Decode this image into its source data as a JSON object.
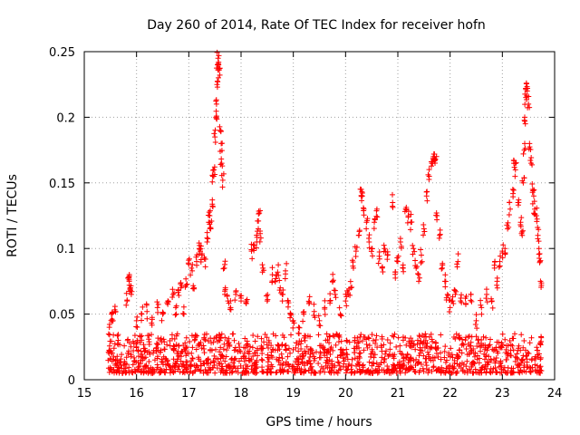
{
  "chart_data": {
    "type": "scatter",
    "title": "Day 260 of 2014, Rate Of TEC Index for receiver hofn",
    "xlabel": "GPS time / hours",
    "ylabel": "ROTI / TECUs",
    "xlim": [
      15,
      24
    ],
    "ylim": [
      0,
      0.25
    ],
    "xticks": [
      "15",
      "16",
      "17",
      "18",
      "19",
      "20",
      "21",
      "22",
      "23",
      "24"
    ],
    "yticks": [
      "0",
      "0.05",
      "0.1",
      "0.15",
      "0.2",
      "0.25"
    ],
    "grid": true,
    "marker": "+",
    "series": [
      {
        "name": "ROTI",
        "color": "#ff0000",
        "baseline": {
          "x_start": 15.45,
          "x_end": 23.75,
          "y_min": 0.005,
          "y_max": 0.035
        },
        "points": [
          {
            "x": 15.48,
            "y": 0.04
          },
          {
            "x": 15.52,
            "y": 0.05
          },
          {
            "x": 15.55,
            "y": 0.045
          },
          {
            "x": 15.6,
            "y": 0.052
          },
          {
            "x": 15.65,
            "y": 0.03
          },
          {
            "x": 15.85,
            "y": 0.078
          },
          {
            "x": 15.86,
            "y": 0.075
          },
          {
            "x": 15.88,
            "y": 0.07
          },
          {
            "x": 15.9,
            "y": 0.065
          },
          {
            "x": 15.82,
            "y": 0.06
          },
          {
            "x": 16.0,
            "y": 0.045
          },
          {
            "x": 16.1,
            "y": 0.05
          },
          {
            "x": 16.2,
            "y": 0.052
          },
          {
            "x": 16.3,
            "y": 0.046
          },
          {
            "x": 16.4,
            "y": 0.055
          },
          {
            "x": 16.5,
            "y": 0.05
          },
          {
            "x": 16.6,
            "y": 0.06
          },
          {
            "x": 16.7,
            "y": 0.065
          },
          {
            "x": 16.75,
            "y": 0.055
          },
          {
            "x": 16.8,
            "y": 0.068
          },
          {
            "x": 16.85,
            "y": 0.07
          },
          {
            "x": 16.9,
            "y": 0.05
          },
          {
            "x": 16.95,
            "y": 0.072
          },
          {
            "x": 17.0,
            "y": 0.088
          },
          {
            "x": 17.05,
            "y": 0.085
          },
          {
            "x": 17.1,
            "y": 0.07
          },
          {
            "x": 17.15,
            "y": 0.09
          },
          {
            "x": 17.2,
            "y": 0.1
          },
          {
            "x": 17.22,
            "y": 0.098
          },
          {
            "x": 17.25,
            "y": 0.095
          },
          {
            "x": 17.3,
            "y": 0.092
          },
          {
            "x": 17.35,
            "y": 0.108
          },
          {
            "x": 17.38,
            "y": 0.12
          },
          {
            "x": 17.4,
            "y": 0.125
          },
          {
            "x": 17.42,
            "y": 0.115
          },
          {
            "x": 17.45,
            "y": 0.137
          },
          {
            "x": 17.46,
            "y": 0.155
          },
          {
            "x": 17.48,
            "y": 0.16
          },
          {
            "x": 17.5,
            "y": 0.185
          },
          {
            "x": 17.52,
            "y": 0.2
          },
          {
            "x": 17.53,
            "y": 0.21
          },
          {
            "x": 17.54,
            "y": 0.225
          },
          {
            "x": 17.55,
            "y": 0.24
          },
          {
            "x": 17.56,
            "y": 0.245
          },
          {
            "x": 17.57,
            "y": 0.242
          },
          {
            "x": 17.58,
            "y": 0.236
          },
          {
            "x": 17.6,
            "y": 0.19
          },
          {
            "x": 17.62,
            "y": 0.18
          },
          {
            "x": 17.63,
            "y": 0.165
          },
          {
            "x": 17.65,
            "y": 0.152
          },
          {
            "x": 17.68,
            "y": 0.085
          },
          {
            "x": 17.7,
            "y": 0.07
          },
          {
            "x": 17.75,
            "y": 0.06
          },
          {
            "x": 17.8,
            "y": 0.055
          },
          {
            "x": 17.9,
            "y": 0.065
          },
          {
            "x": 18.0,
            "y": 0.06
          },
          {
            "x": 18.1,
            "y": 0.058
          },
          {
            "x": 18.2,
            "y": 0.098
          },
          {
            "x": 18.25,
            "y": 0.1
          },
          {
            "x": 18.3,
            "y": 0.105
          },
          {
            "x": 18.33,
            "y": 0.115
          },
          {
            "x": 18.35,
            "y": 0.127
          },
          {
            "x": 18.38,
            "y": 0.108
          },
          {
            "x": 18.42,
            "y": 0.085
          },
          {
            "x": 18.5,
            "y": 0.06
          },
          {
            "x": 18.6,
            "y": 0.08
          },
          {
            "x": 18.65,
            "y": 0.075
          },
          {
            "x": 18.7,
            "y": 0.082
          },
          {
            "x": 18.75,
            "y": 0.07
          },
          {
            "x": 18.8,
            "y": 0.065
          },
          {
            "x": 18.85,
            "y": 0.083
          },
          {
            "x": 18.9,
            "y": 0.06
          },
          {
            "x": 18.95,
            "y": 0.05
          },
          {
            "x": 19.0,
            "y": 0.045
          },
          {
            "x": 19.1,
            "y": 0.04
          },
          {
            "x": 19.2,
            "y": 0.05
          },
          {
            "x": 19.3,
            "y": 0.058
          },
          {
            "x": 19.4,
            "y": 0.052
          },
          {
            "x": 19.5,
            "y": 0.045
          },
          {
            "x": 19.6,
            "y": 0.055
          },
          {
            "x": 19.7,
            "y": 0.06
          },
          {
            "x": 19.75,
            "y": 0.075
          },
          {
            "x": 19.8,
            "y": 0.065
          },
          {
            "x": 19.9,
            "y": 0.05
          },
          {
            "x": 20.0,
            "y": 0.06
          },
          {
            "x": 20.05,
            "y": 0.065
          },
          {
            "x": 20.1,
            "y": 0.07
          },
          {
            "x": 20.15,
            "y": 0.085
          },
          {
            "x": 20.2,
            "y": 0.098
          },
          {
            "x": 20.25,
            "y": 0.11
          },
          {
            "x": 20.3,
            "y": 0.145
          },
          {
            "x": 20.32,
            "y": 0.14
          },
          {
            "x": 20.35,
            "y": 0.13
          },
          {
            "x": 20.4,
            "y": 0.12
          },
          {
            "x": 20.45,
            "y": 0.105
          },
          {
            "x": 20.5,
            "y": 0.1
          },
          {
            "x": 20.55,
            "y": 0.12
          },
          {
            "x": 20.6,
            "y": 0.13
          },
          {
            "x": 20.65,
            "y": 0.092
          },
          {
            "x": 20.7,
            "y": 0.085
          },
          {
            "x": 20.75,
            "y": 0.1
          },
          {
            "x": 20.8,
            "y": 0.095
          },
          {
            "x": 20.9,
            "y": 0.135
          },
          {
            "x": 20.95,
            "y": 0.082
          },
          {
            "x": 21.0,
            "y": 0.09
          },
          {
            "x": 21.05,
            "y": 0.105
          },
          {
            "x": 21.1,
            "y": 0.085
          },
          {
            "x": 21.15,
            "y": 0.13
          },
          {
            "x": 21.2,
            "y": 0.125
          },
          {
            "x": 21.25,
            "y": 0.12
          },
          {
            "x": 21.3,
            "y": 0.1
          },
          {
            "x": 21.35,
            "y": 0.085
          },
          {
            "x": 21.4,
            "y": 0.075
          },
          {
            "x": 21.45,
            "y": 0.095
          },
          {
            "x": 21.5,
            "y": 0.115
          },
          {
            "x": 21.55,
            "y": 0.14
          },
          {
            "x": 21.6,
            "y": 0.155
          },
          {
            "x": 21.65,
            "y": 0.165
          },
          {
            "x": 21.68,
            "y": 0.17
          },
          {
            "x": 21.7,
            "y": 0.172
          },
          {
            "x": 21.72,
            "y": 0.168
          },
          {
            "x": 21.75,
            "y": 0.125
          },
          {
            "x": 21.8,
            "y": 0.11
          },
          {
            "x": 21.85,
            "y": 0.085
          },
          {
            "x": 21.9,
            "y": 0.075
          },
          {
            "x": 21.95,
            "y": 0.065
          },
          {
            "x": 22.0,
            "y": 0.055
          },
          {
            "x": 22.05,
            "y": 0.06
          },
          {
            "x": 22.1,
            "y": 0.065
          },
          {
            "x": 22.15,
            "y": 0.09
          },
          {
            "x": 22.2,
            "y": 0.06
          },
          {
            "x": 22.3,
            "y": 0.058
          },
          {
            "x": 22.4,
            "y": 0.065
          },
          {
            "x": 22.5,
            "y": 0.045
          },
          {
            "x": 22.6,
            "y": 0.055
          },
          {
            "x": 22.7,
            "y": 0.065
          },
          {
            "x": 22.8,
            "y": 0.06
          },
          {
            "x": 22.85,
            "y": 0.085
          },
          {
            "x": 22.9,
            "y": 0.075
          },
          {
            "x": 22.95,
            "y": 0.09
          },
          {
            "x": 23.0,
            "y": 0.098
          },
          {
            "x": 23.05,
            "y": 0.1
          },
          {
            "x": 23.1,
            "y": 0.115
          },
          {
            "x": 23.15,
            "y": 0.13
          },
          {
            "x": 23.2,
            "y": 0.145
          },
          {
            "x": 23.22,
            "y": 0.165
          },
          {
            "x": 23.25,
            "y": 0.16
          },
          {
            "x": 23.3,
            "y": 0.135
          },
          {
            "x": 23.35,
            "y": 0.12
          },
          {
            "x": 23.38,
            "y": 0.11
          },
          {
            "x": 23.4,
            "y": 0.15
          },
          {
            "x": 23.42,
            "y": 0.175
          },
          {
            "x": 23.44,
            "y": 0.195
          },
          {
            "x": 23.45,
            "y": 0.215
          },
          {
            "x": 23.46,
            "y": 0.226
          },
          {
            "x": 23.48,
            "y": 0.222
          },
          {
            "x": 23.5,
            "y": 0.21
          },
          {
            "x": 23.52,
            "y": 0.18
          },
          {
            "x": 23.55,
            "y": 0.165
          },
          {
            "x": 23.58,
            "y": 0.145
          },
          {
            "x": 23.6,
            "y": 0.14
          },
          {
            "x": 23.62,
            "y": 0.13
          },
          {
            "x": 23.65,
            "y": 0.125
          },
          {
            "x": 23.68,
            "y": 0.11
          },
          {
            "x": 23.7,
            "y": 0.1
          },
          {
            "x": 23.72,
            "y": 0.09
          },
          {
            "x": 23.73,
            "y": 0.075
          }
        ]
      }
    ]
  }
}
